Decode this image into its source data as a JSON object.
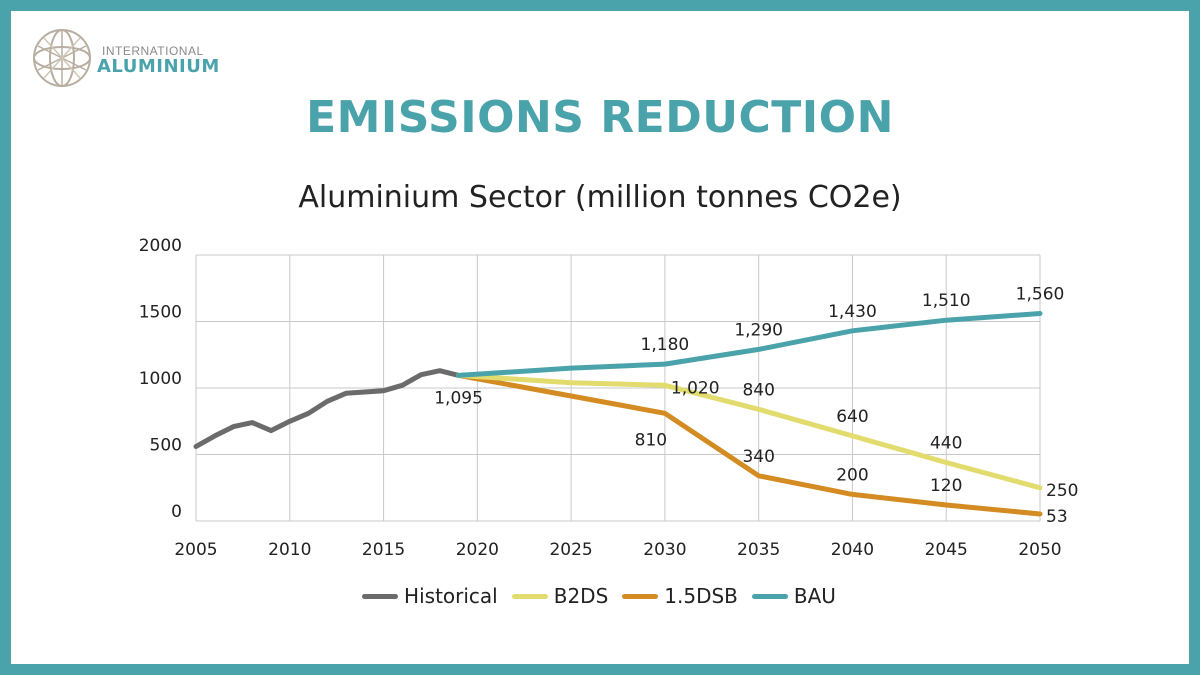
{
  "logo": {
    "top_text": "INTERNATIONAL",
    "main_text": "ALUMINIUM"
  },
  "heading": "EMISSIONS REDUCTION",
  "colors": {
    "frame": "#4aa3ab",
    "historical": "#6b6b6b",
    "b2ds": "#e2dc6e",
    "dsb15": "#d48b22",
    "bau": "#4aa3ab",
    "grid": "#c8c8c8"
  },
  "chart_data": {
    "type": "line",
    "title": "Aluminium Sector (million tonnes CO2e)",
    "xlabel": "",
    "ylabel": "",
    "xlim": [
      2005,
      2050
    ],
    "ylim": [
      0,
      2000
    ],
    "x_ticks": [
      2005,
      2010,
      2015,
      2020,
      2025,
      2030,
      2035,
      2040,
      2045,
      2050
    ],
    "y_ticks": [
      0,
      500,
      1000,
      1500,
      2000
    ],
    "grid": true,
    "legend_position": "bottom",
    "series": [
      {
        "name": "Historical",
        "color_key": "historical",
        "x": [
          2005,
          2006,
          2007,
          2008,
          2009,
          2010,
          2011,
          2012,
          2013,
          2014,
          2015,
          2016,
          2017,
          2018,
          2019
        ],
        "y": [
          560,
          640,
          710,
          740,
          680,
          750,
          810,
          900,
          960,
          970,
          980,
          1020,
          1100,
          1130,
          1095
        ]
      },
      {
        "name": "B2DS",
        "color_key": "b2ds",
        "x": [
          2019,
          2025,
          2030,
          2035,
          2040,
          2045,
          2050
        ],
        "y": [
          1095,
          1040,
          1020,
          840,
          640,
          440,
          250
        ]
      },
      {
        "name": "1.5DSB",
        "color_key": "dsb15",
        "x": [
          2019,
          2025,
          2030,
          2035,
          2040,
          2045,
          2050
        ],
        "y": [
          1095,
          940,
          810,
          340,
          200,
          120,
          53
        ]
      },
      {
        "name": "BAU",
        "color_key": "bau",
        "x": [
          2019,
          2025,
          2030,
          2035,
          2040,
          2045,
          2050
        ],
        "y": [
          1095,
          1150,
          1180,
          1290,
          1430,
          1510,
          1560
        ]
      }
    ],
    "annotations": [
      {
        "text": "1,095",
        "x": 2019,
        "y": 1095,
        "anchor": "below"
      },
      {
        "text": "1,180",
        "x": 2030,
        "y": 1180,
        "anchor": "above"
      },
      {
        "text": "1,290",
        "x": 2035,
        "y": 1290,
        "anchor": "above"
      },
      {
        "text": "1,430",
        "x": 2040,
        "y": 1430,
        "anchor": "above"
      },
      {
        "text": "1,510",
        "x": 2045,
        "y": 1510,
        "anchor": "above"
      },
      {
        "text": "1,560",
        "x": 2050,
        "y": 1560,
        "anchor": "above"
      },
      {
        "text": "1,020",
        "x": 2030,
        "y": 1020,
        "anchor": "right"
      },
      {
        "text": "840",
        "x": 2035,
        "y": 840,
        "anchor": "above"
      },
      {
        "text": "640",
        "x": 2040,
        "y": 640,
        "anchor": "above"
      },
      {
        "text": "440",
        "x": 2045,
        "y": 440,
        "anchor": "above"
      },
      {
        "text": "250",
        "x": 2050,
        "y": 250,
        "anchor": "right"
      },
      {
        "text": "810",
        "x": 2030,
        "y": 810,
        "anchor": "below-left"
      },
      {
        "text": "340",
        "x": 2035,
        "y": 340,
        "anchor": "above"
      },
      {
        "text": "200",
        "x": 2040,
        "y": 200,
        "anchor": "above"
      },
      {
        "text": "120",
        "x": 2045,
        "y": 120,
        "anchor": "above"
      },
      {
        "text": "53",
        "x": 2050,
        "y": 53,
        "anchor": "right"
      }
    ]
  }
}
